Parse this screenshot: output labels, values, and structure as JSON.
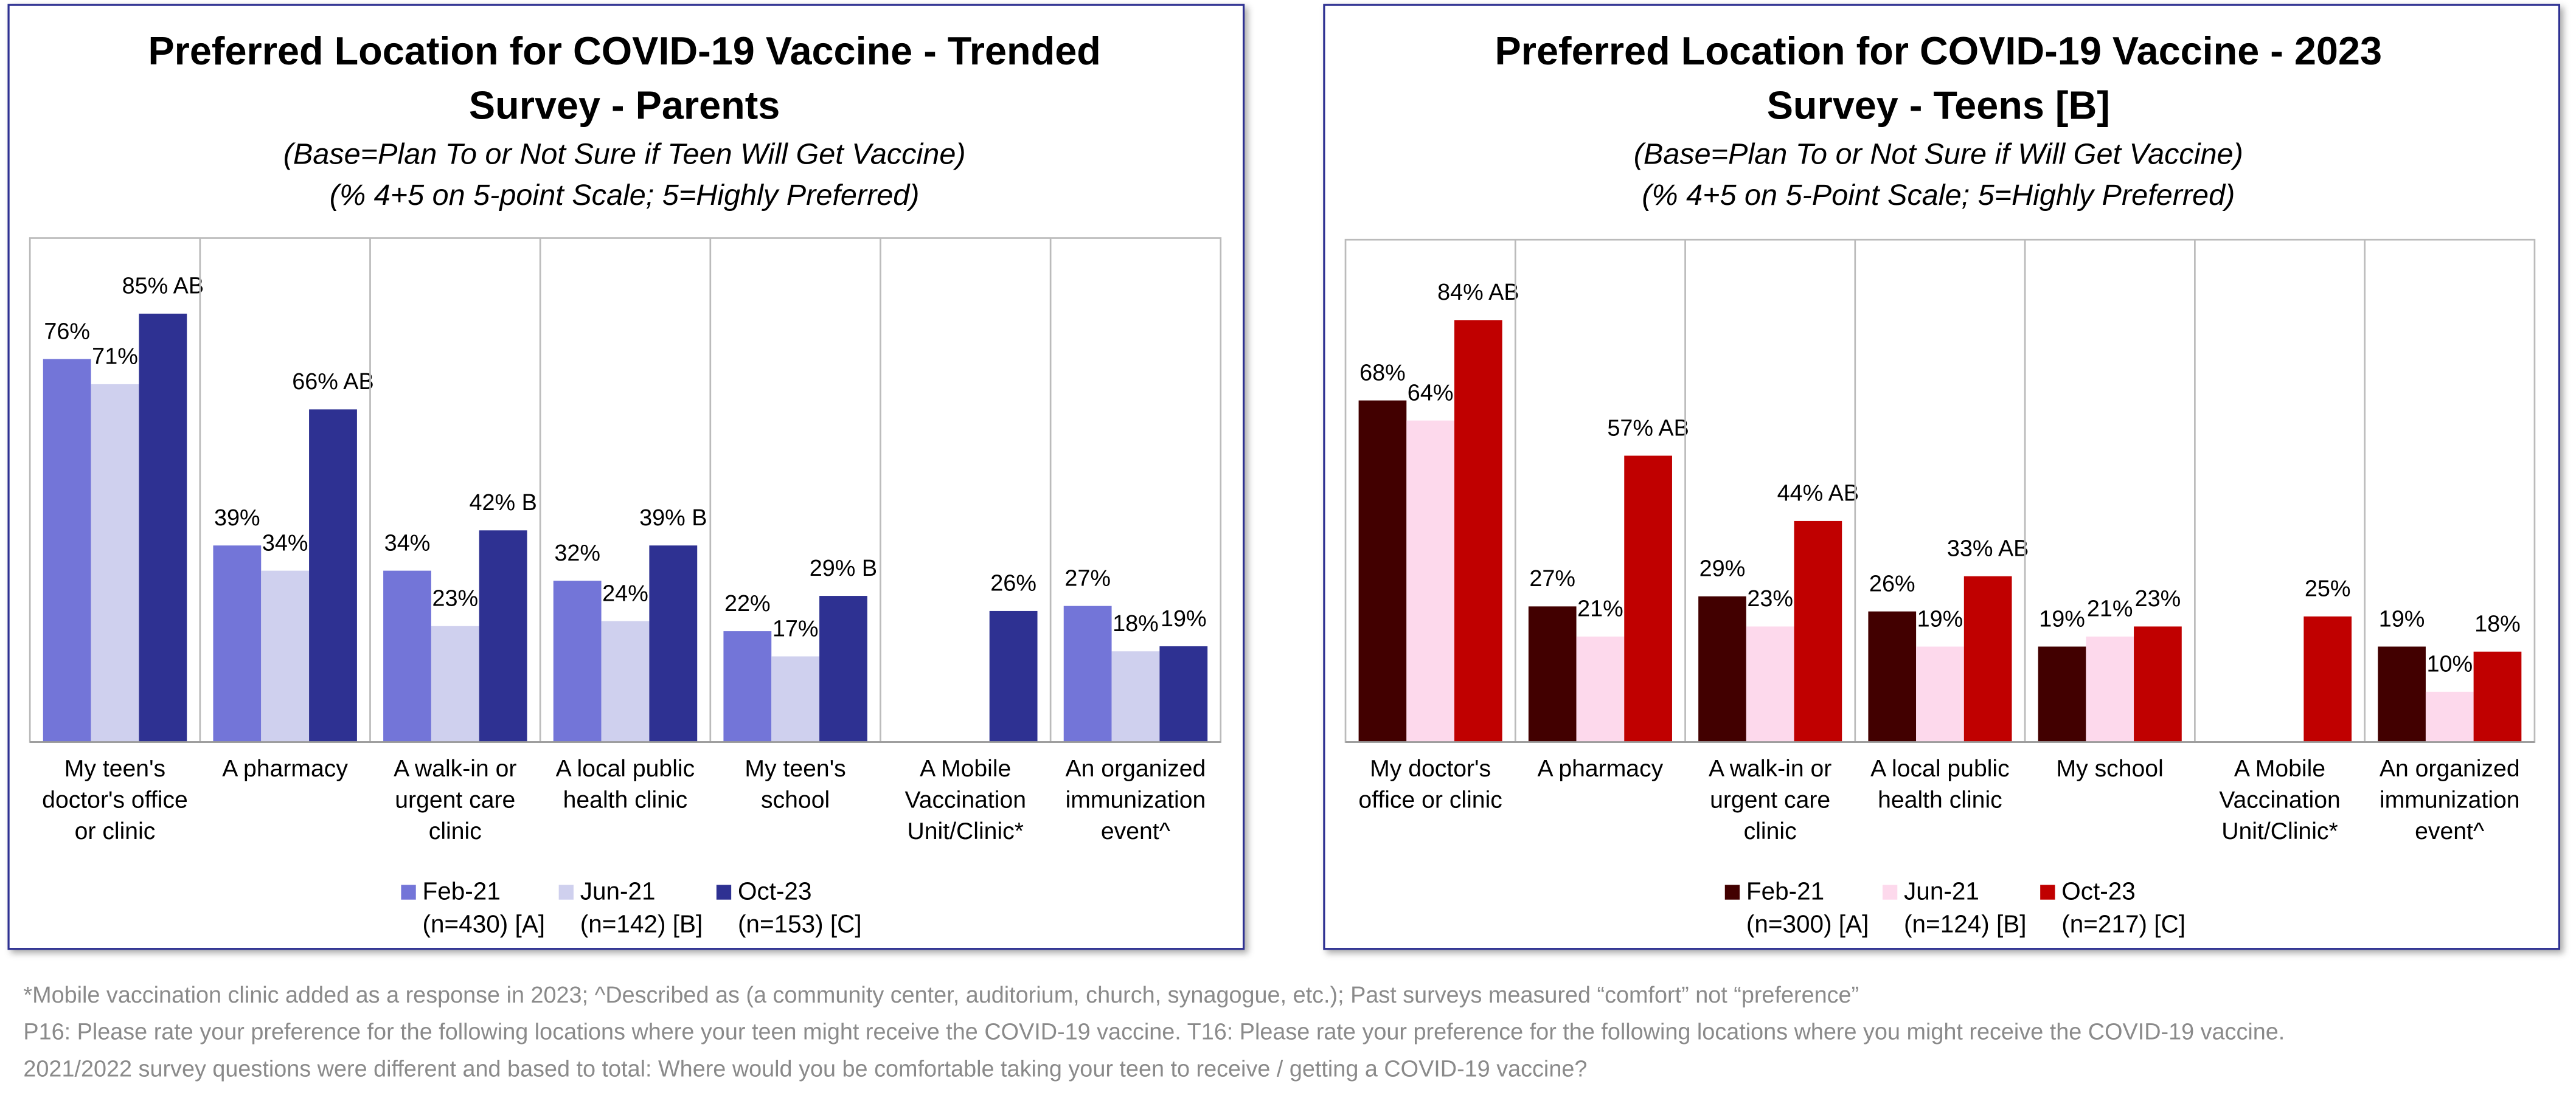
{
  "chart_data": [
    {
      "type": "bar",
      "title": [
        "Preferred Location for COVID-19 Vaccine - Trended",
        "Survey - Parents"
      ],
      "subtitle": [
        "(Base=Plan To or Not Sure if Teen Will Get Vaccine)",
        "(% 4+5 on 5-point Scale; 5=Highly Preferred)"
      ],
      "categories": [
        "My teen's doctor's office or clinic",
        "A pharmacy",
        "A walk-in or urgent care clinic",
        "A local public health clinic",
        "My teen's school",
        "A Mobile Vaccination Unit/Clinic*",
        "An organized immunization event^"
      ],
      "ylim": [
        0,
        100
      ],
      "series": [
        {
          "name": "Feb-21",
          "base": "(n=430) [A]",
          "color": "#7375d8",
          "values": [
            76,
            39,
            34,
            32,
            22,
            null,
            27
          ],
          "value_labels": [
            "76%",
            "39%",
            "34%",
            "32%",
            "22%",
            null,
            "27%"
          ]
        },
        {
          "name": "Jun-21",
          "base": "(n=142) [B]",
          "color": "#cfd0ee",
          "values": [
            71,
            34,
            23,
            24,
            17,
            null,
            18
          ],
          "value_labels": [
            "71%",
            "34%",
            "23%",
            "24%",
            "17%",
            null,
            "18%"
          ]
        },
        {
          "name": "Oct-23",
          "base": "(n=153) [C]",
          "color": "#2e3192",
          "values": [
            85,
            66,
            42,
            39,
            29,
            26,
            19
          ],
          "value_labels": [
            "85% AB",
            "66% AB",
            "42% B",
            "39% B",
            "29% B",
            "26%",
            "19%"
          ]
        }
      ]
    },
    {
      "type": "bar",
      "title": [
        "Preferred Location for COVID-19 Vaccine - 2023",
        "Survey - Teens [B]"
      ],
      "subtitle": [
        "(Base=Plan To or Not Sure if Will Get Vaccine)",
        "(% 4+5 on 5-Point Scale; 5=Highly Preferred)"
      ],
      "categories": [
        "My doctor's office or clinic",
        "A pharmacy",
        "A walk-in or urgent care clinic",
        "A local public health clinic",
        "My school",
        "A Mobile Vaccination Unit/Clinic*",
        "An organized immunization event^"
      ],
      "ylim": [
        0,
        100
      ],
      "series": [
        {
          "name": "Feb-21",
          "base": "(n=300) [A]",
          "color": "#420000",
          "values": [
            68,
            27,
            29,
            26,
            19,
            null,
            19
          ],
          "value_labels": [
            "68%",
            "27%",
            "29%",
            "26%",
            "19%",
            null,
            "19%"
          ]
        },
        {
          "name": "Jun-21",
          "base": "(n=124) [B]",
          "color": "#fdd9ec",
          "values": [
            64,
            21,
            23,
            19,
            21,
            null,
            10
          ],
          "value_labels": [
            "64%",
            "21%",
            "23%",
            "19%",
            "21%",
            null,
            "10%"
          ]
        },
        {
          "name": "Oct-23",
          "base": "(n=217) [C]",
          "color": "#c00000",
          "values": [
            84,
            57,
            44,
            33,
            23,
            25,
            18
          ],
          "value_labels": [
            "84% AB",
            "57% AB",
            "44% AB",
            "33% AB",
            "23%",
            "25%",
            "18%"
          ]
        }
      ]
    }
  ],
  "footnotes": [
    "*Mobile vaccination clinic added as a response in 2023; ^Described as (a community center, auditorium, church, synagogue, etc.); Past surveys measured “comfort” not “preference”",
    "P16: Please rate your preference for the following locations where your teen might receive the COVID-19 vaccine. T16: Please rate your preference for the following locations where you might receive the COVID-19 vaccine.",
    "2021/2022 survey questions were different and based to total: Where would you be comfortable taking your teen to receive / getting a COVID-19 vaccine?"
  ]
}
